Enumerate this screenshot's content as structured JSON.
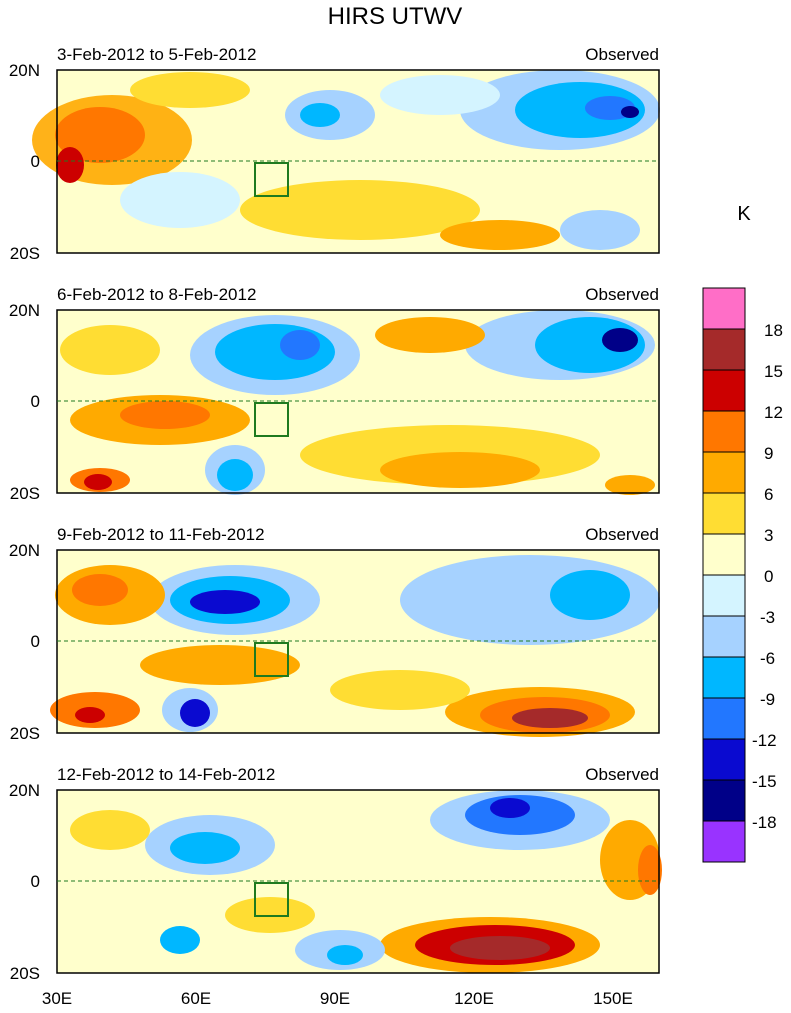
{
  "title": "HIRS UTWV",
  "panels": [
    {
      "date_range": "3-Feb-2012 to 5-Feb-2012",
      "tag": "Observed"
    },
    {
      "date_range": "6-Feb-2012 to 8-Feb-2012",
      "tag": "Observed"
    },
    {
      "date_range": "9-Feb-2012 to 11-Feb-2012",
      "tag": "Observed"
    },
    {
      "date_range": "12-Feb-2012 to 14-Feb-2012",
      "tag": "Observed"
    }
  ],
  "lat_labels": [
    "20N",
    "0",
    "20S"
  ],
  "lon_labels": [
    "30E",
    "60E",
    "90E",
    "120E",
    "150E"
  ],
  "colorbar": {
    "unit": "K",
    "labels": [
      "18",
      "15",
      "12",
      "9",
      "6",
      "3",
      "0",
      "-3",
      "-6",
      "-9",
      "-12",
      "-15",
      "-18"
    ],
    "colors": [
      "#ff6ec7",
      "#a52a2a",
      "#cc0000",
      "#ff7700",
      "#ffaa00",
      "#ffdd33",
      "#ffffcc",
      "#d4f4ff",
      "#a6d2ff",
      "#00b7ff",
      "#2277ff",
      "#0a0ad0",
      "#000088",
      "#9933ff"
    ]
  },
  "map_style": {
    "land": "#1f7a1f",
    "zero_line": "#1f7a1f"
  }
}
